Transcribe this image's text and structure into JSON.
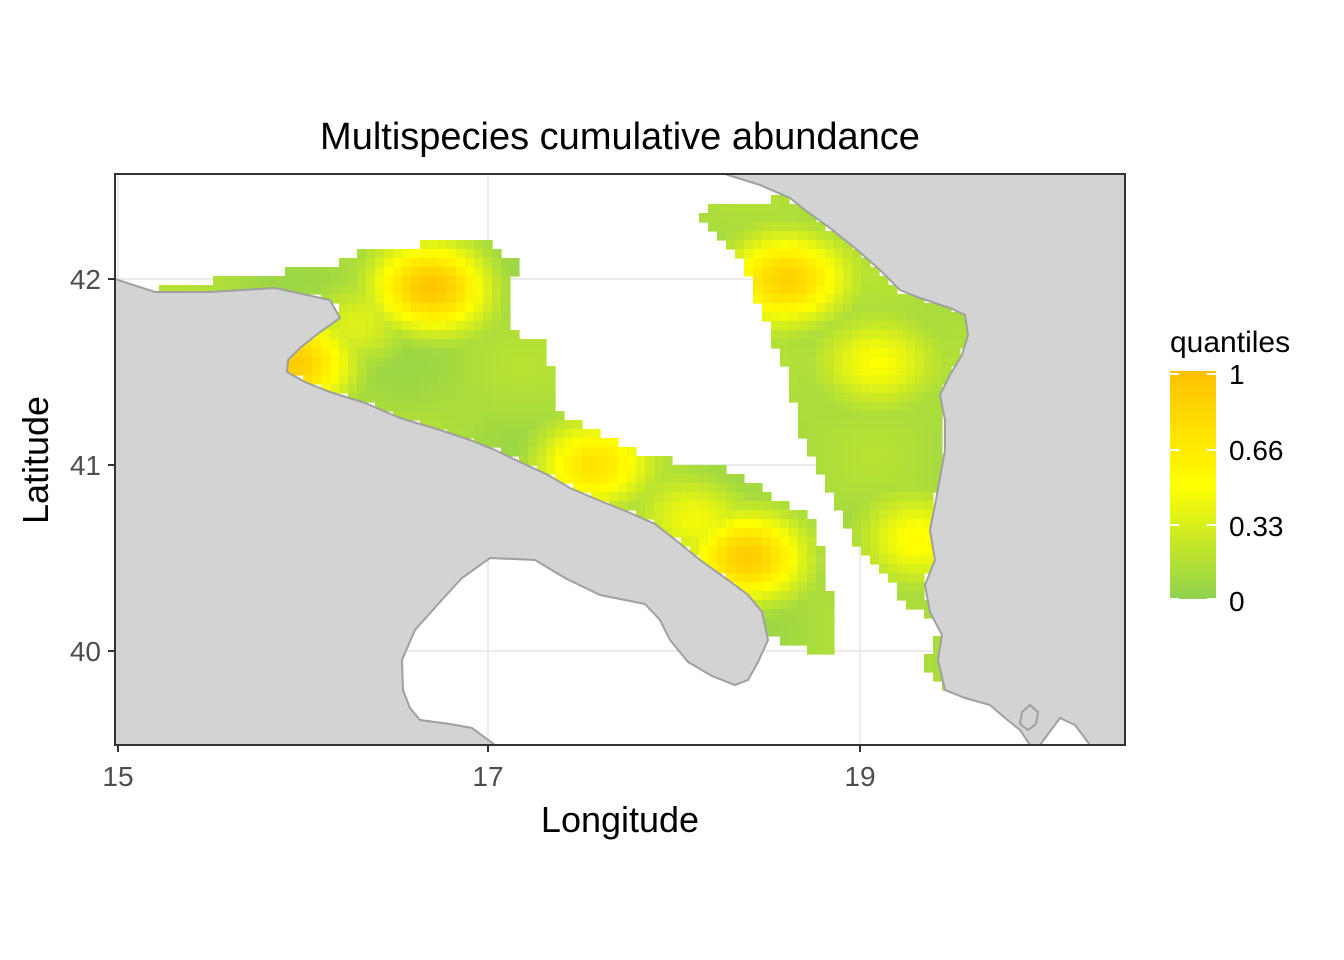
{
  "chart_data": {
    "type": "heatmap",
    "title": "Multispecies cumulative abundance",
    "xlabel": "Longitude",
    "ylabel": "Latitude",
    "xlim": [
      14.98,
      20.42
    ],
    "ylim": [
      39.51,
      42.57
    ],
    "x_ticks": [
      {
        "value": 15,
        "label": "15"
      },
      {
        "value": 17,
        "label": "17"
      },
      {
        "value": 19,
        "label": "19"
      }
    ],
    "y_ticks": [
      {
        "value": 40,
        "label": "40"
      },
      {
        "value": 41,
        "label": "41"
      },
      {
        "value": 42,
        "label": "42"
      }
    ],
    "grid": true,
    "legend": {
      "title": "quantiles",
      "placement": "right",
      "labels": [
        {
          "value": 1,
          "label": "1"
        },
        {
          "value": 0.66,
          "label": "0.66"
        },
        {
          "value": 0.33,
          "label": "0.33"
        },
        {
          "value": 0,
          "label": "0"
        }
      ],
      "colors": {
        "low": "#8fd14f",
        "mid": "#ffff00",
        "high": "#ffc000"
      }
    },
    "colors": {
      "land": "#d3d3d3",
      "coast": "#a0a0a0",
      "grid": "#ebebeb",
      "panel_border": "#333333"
    },
    "hotspots": [
      {
        "lon": 16.7,
        "lat": 41.95,
        "value": 0.92
      },
      {
        "lon": 18.6,
        "lat": 42.0,
        "value": 0.9
      },
      {
        "lon": 18.4,
        "lat": 40.5,
        "value": 0.85
      },
      {
        "lon": 17.55,
        "lat": 41.0,
        "value": 0.7
      },
      {
        "lon": 15.95,
        "lat": 41.55,
        "value": 0.85
      },
      {
        "lon": 19.1,
        "lat": 41.55,
        "value": 0.55
      },
      {
        "lon": 19.3,
        "lat": 40.6,
        "value": 0.55
      },
      {
        "lon": 18.1,
        "lat": 40.7,
        "value": 0.45
      },
      {
        "lon": 16.3,
        "lat": 41.75,
        "value": 0.35
      }
    ]
  }
}
